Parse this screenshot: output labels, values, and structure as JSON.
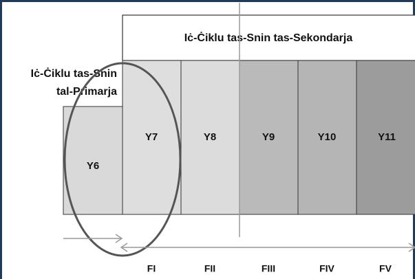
{
  "secondary": {
    "title": "Iċ-Ċiklu tas-Snin tas-Sekondarja"
  },
  "primary": {
    "lines": [
      "Iċ-Ċiklu tas-Snin",
      "tal-Primarja"
    ]
  },
  "years": [
    "Y6",
    "Y7",
    "Y8",
    "Y9",
    "Y10",
    "Y11"
  ],
  "forms": [
    "FI",
    "FII",
    "FIII",
    "FIV",
    "FV"
  ]
}
